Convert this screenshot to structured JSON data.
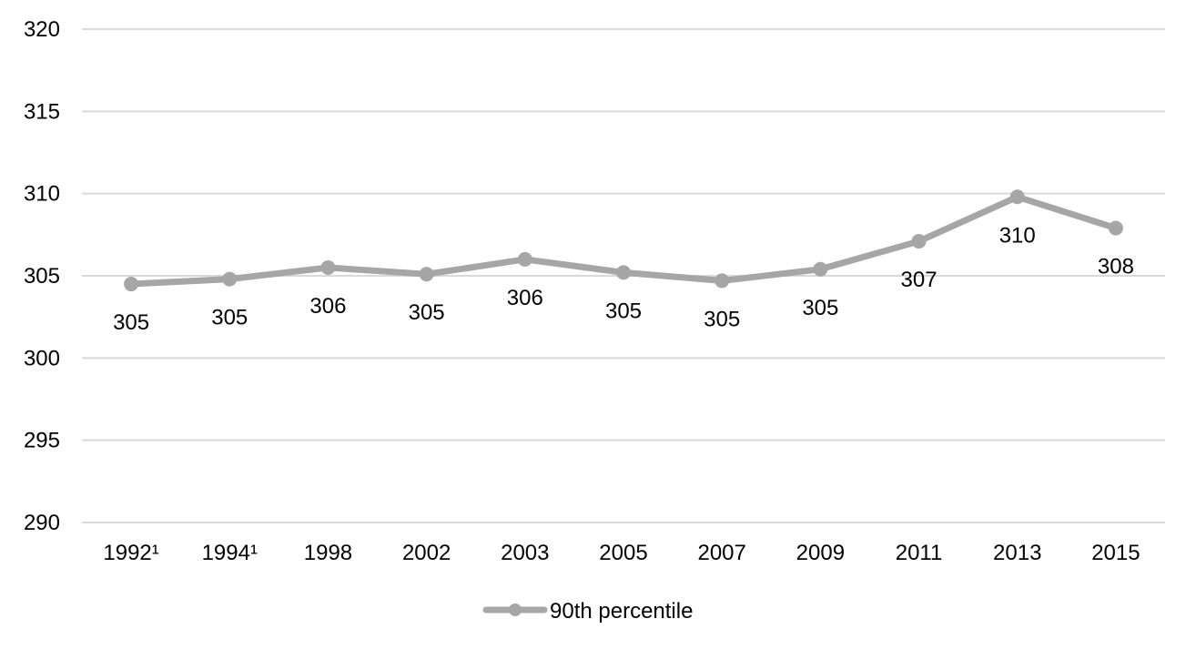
{
  "chart_data": {
    "type": "line",
    "title": "",
    "xlabel": "",
    "ylabel": "",
    "ylim": [
      290,
      320
    ],
    "yticks": [
      290,
      295,
      300,
      305,
      310,
      315,
      320
    ],
    "grid": true,
    "legend_position": "bottom",
    "categories": [
      "1992¹",
      "1994¹",
      "1998",
      "2002",
      "2003",
      "2005",
      "2007",
      "2009",
      "2011",
      "2013",
      "2015"
    ],
    "series": [
      {
        "name": "90th percentile",
        "color": "#a6a6a6",
        "values": [
          304.5,
          304.8,
          305.5,
          305.1,
          306.0,
          305.2,
          304.7,
          305.4,
          307.1,
          309.8,
          307.9
        ],
        "labels": [
          "305",
          "305",
          "306",
          "305",
          "306",
          "305",
          "305",
          "305",
          "307",
          "310",
          "308"
        ],
        "label_position": [
          "below",
          "below",
          "below",
          "below",
          "below",
          "below",
          "below",
          "below",
          "below",
          "below",
          "below"
        ]
      }
    ]
  }
}
